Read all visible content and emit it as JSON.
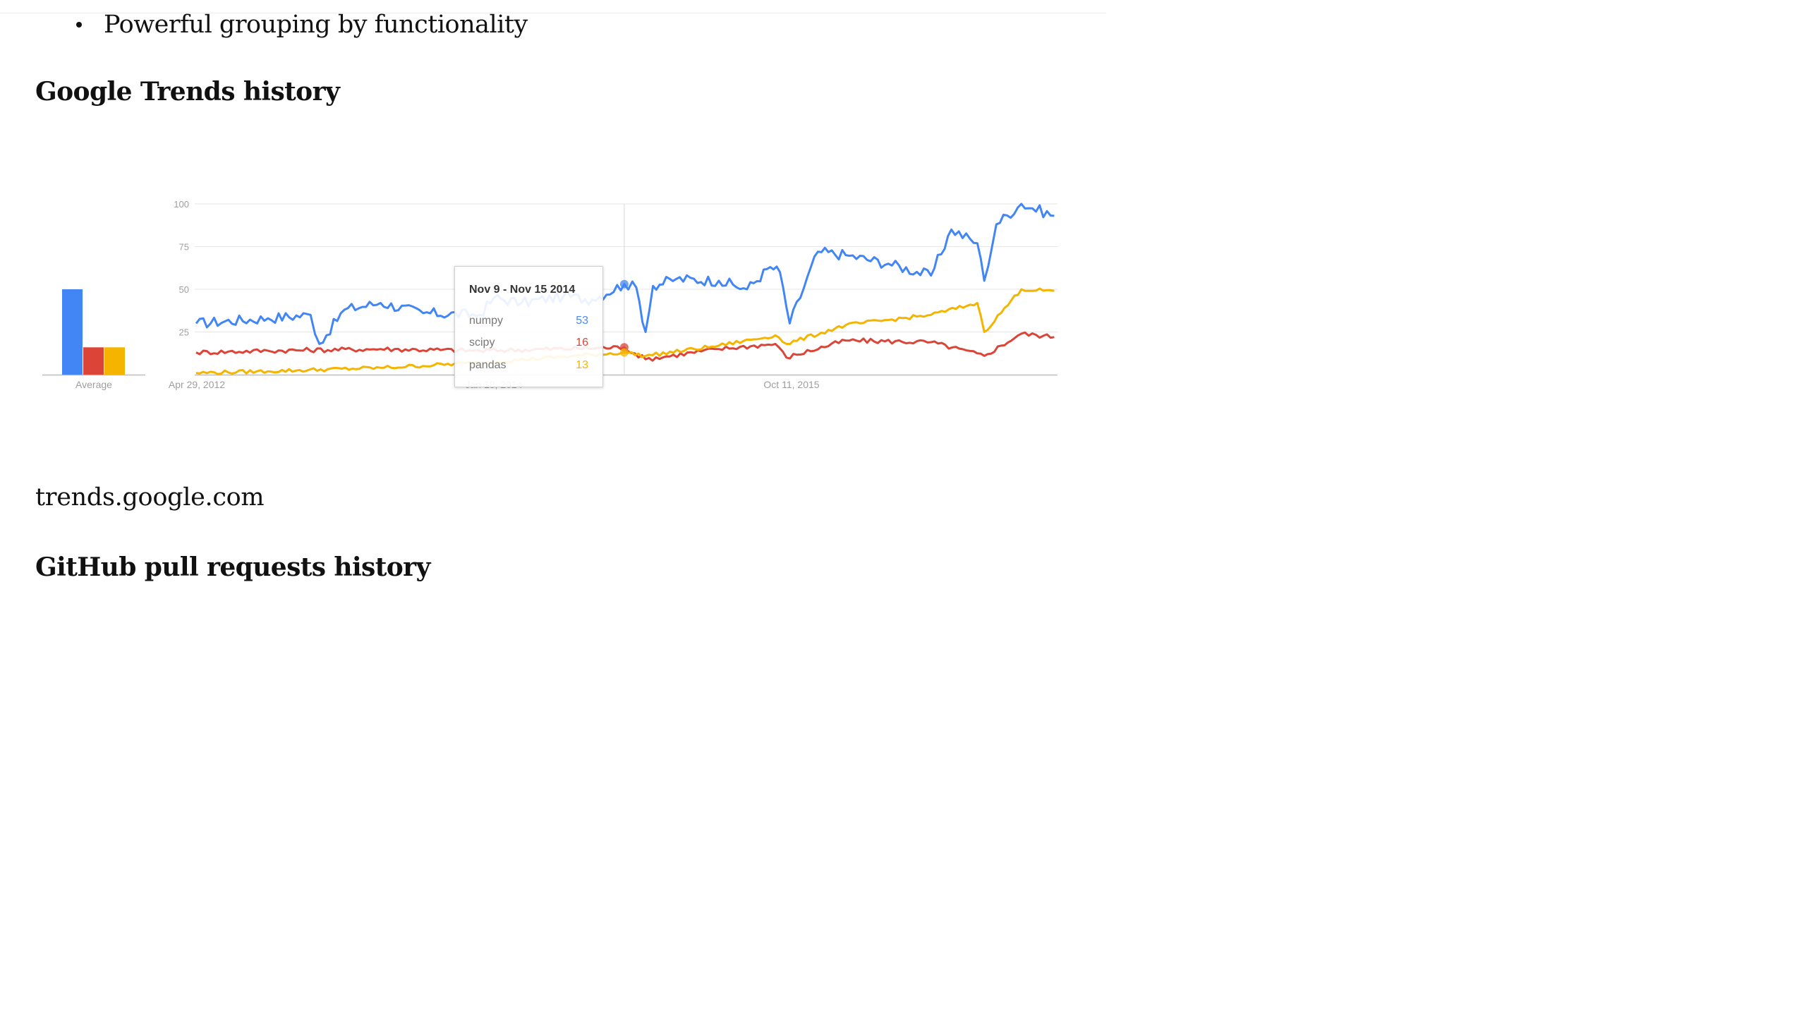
{
  "article": {
    "bullet": "Powerful grouping by functionality",
    "heading_trends": "Google Trends history",
    "caption": "trends.google.com",
    "heading_github": "GitHub pull requests history"
  },
  "tooltip": {
    "title": "Nov 9 - Nov 15 2014",
    "rows": [
      {
        "label": "numpy",
        "value": "53",
        "color": "#4d8af0"
      },
      {
        "label": "scipy",
        "value": "16",
        "color": "#db4437"
      },
      {
        "label": "pandas",
        "value": "13",
        "color": "#f4b400"
      }
    ]
  },
  "chart_data": [
    {
      "type": "bar",
      "categories": [
        "numpy",
        "scipy",
        "pandas"
      ],
      "values": [
        50,
        16,
        16
      ],
      "colors": [
        "#4285f4",
        "#db4437",
        "#f4b400"
      ],
      "xlabel": "Average",
      "ylim": [
        0,
        100
      ]
    },
    {
      "type": "line",
      "x_labels": [
        "Apr 29, 2012",
        "Jan 18, 2014",
        "Oct 11, 2015"
      ],
      "x_range": [
        "2012-04-29",
        "2017-06-01"
      ],
      "y_ticks": [
        25,
        50,
        75,
        100
      ],
      "ylim": [
        0,
        100
      ],
      "grid": true,
      "highlight_x": "2014-11-09",
      "series": [
        {
          "name": "numpy",
          "color": "#4285f4",
          "x": [
            "2012-04-29",
            "2012-10-01",
            "2013-01-01",
            "2013-01-20",
            "2013-03-15",
            "2013-06-01",
            "2013-09-01",
            "2014-01-01",
            "2014-02-01",
            "2014-04-01",
            "2014-07-01",
            "2014-09-01",
            "2014-11-09",
            "2014-12-05",
            "2014-12-25",
            "2015-01-10",
            "2015-03-01",
            "2015-06-01",
            "2015-08-01",
            "2015-09-20",
            "2015-10-11",
            "2015-11-01",
            "2016-01-01",
            "2016-03-01",
            "2016-06-01",
            "2016-09-01",
            "2016-10-15",
            "2016-12-10",
            "2016-12-25",
            "2017-01-20",
            "2017-03-15",
            "2017-05-25"
          ],
          "y": [
            30,
            33,
            35,
            18,
            38,
            42,
            36,
            35,
            45,
            42,
            46,
            44,
            53,
            51,
            25,
            52,
            56,
            55,
            50,
            63,
            60,
            30,
            72,
            70,
            65,
            58,
            85,
            77,
            55,
            88,
            100,
            93
          ]
        },
        {
          "name": "scipy",
          "color": "#db4437",
          "x": [
            "2012-04-29",
            "2012-10-01",
            "2013-06-01",
            "2014-01-01",
            "2014-11-09",
            "2014-12-25",
            "2015-06-01",
            "2015-10-01",
            "2015-10-25",
            "2016-03-01",
            "2016-09-01",
            "2016-12-25",
            "2017-03-15",
            "2017-05-25"
          ],
          "y": [
            13,
            14,
            15,
            14,
            16,
            9,
            15,
            18,
            10,
            20,
            19,
            11,
            24,
            22
          ]
        },
        {
          "name": "pandas",
          "color": "#f4b400",
          "x": [
            "2012-04-29",
            "2012-10-01",
            "2013-06-01",
            "2014-01-01",
            "2014-11-09",
            "2014-12-25",
            "2015-06-01",
            "2015-10-01",
            "2015-10-25",
            "2016-03-01",
            "2016-09-01",
            "2016-12-10",
            "2016-12-25",
            "2017-03-15",
            "2017-05-25"
          ],
          "y": [
            1,
            2,
            4,
            7,
            13,
            11,
            17,
            23,
            18,
            29,
            35,
            42,
            25,
            50,
            49
          ]
        }
      ]
    }
  ]
}
